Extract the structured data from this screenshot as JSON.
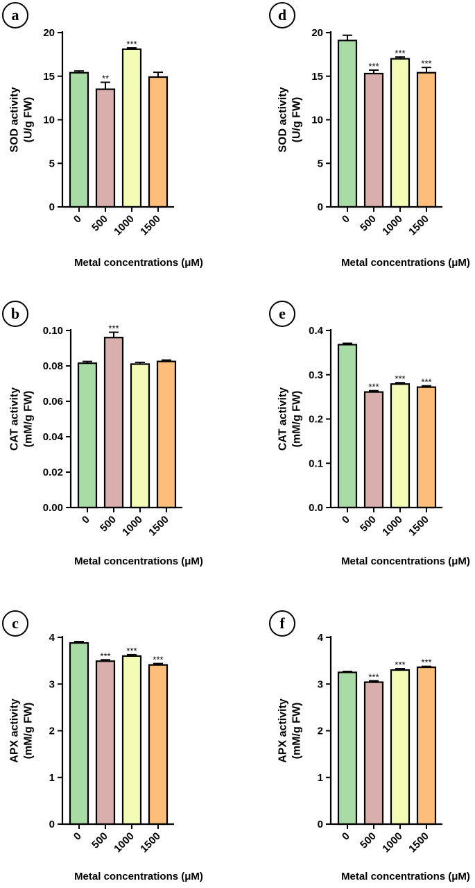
{
  "colors": {
    "0": "#a9dba6",
    "500": "#d9afad",
    "1000": "#f3fbb7",
    "1500": "#fdbd7b"
  },
  "chart_data": [
    {
      "panel": "a",
      "type": "bar",
      "categories": [
        "0",
        "500",
        "1000",
        "1500"
      ],
      "values": [
        15.4,
        13.5,
        18.1,
        14.9
      ],
      "errors": [
        0.2,
        0.8,
        0.15,
        0.55
      ],
      "significance": [
        "",
        "**",
        "***",
        ""
      ],
      "ylabel_line1": "SOD activity",
      "ylabel_line2": "(U/g FW)",
      "xlabel": "Metal concentrations (μM)",
      "ylim": [
        0,
        20
      ],
      "yticks": [
        0,
        5,
        10,
        15,
        20
      ],
      "ytick_labels": [
        "0",
        "5",
        "10",
        "15",
        "20"
      ]
    },
    {
      "panel": "b",
      "type": "bar",
      "categories": [
        "0",
        "500",
        "1000",
        "1500"
      ],
      "values": [
        0.0815,
        0.096,
        0.081,
        0.0825
      ],
      "errors": [
        0.001,
        0.003,
        0.001,
        0.0008
      ],
      "significance": [
        "",
        "***",
        "",
        ""
      ],
      "ylabel_line1": "CAT activity",
      "ylabel_line2": "(mM/g FW)",
      "xlabel": "Metal concentrations (μM)",
      "ylim": [
        0,
        0.1
      ],
      "yticks": [
        0,
        0.02,
        0.04,
        0.06,
        0.08,
        0.1
      ],
      "ytick_labels": [
        "0.00",
        "0.02",
        "0.04",
        "0.06",
        "0.08",
        "0.10"
      ]
    },
    {
      "panel": "c",
      "type": "bar",
      "categories": [
        "0",
        "500",
        "1000",
        "1500"
      ],
      "values": [
        3.88,
        3.49,
        3.6,
        3.41
      ],
      "errors": [
        0.03,
        0.03,
        0.03,
        0.03
      ],
      "significance": [
        "",
        "***",
        "***",
        "***"
      ],
      "ylabel_line1": "APX activity",
      "ylabel_line2": "(mM/g FW)",
      "xlabel": "Metal concentrations (μM)",
      "ylim": [
        0,
        4
      ],
      "yticks": [
        0,
        1,
        2,
        3,
        4
      ],
      "ytick_labels": [
        "0",
        "1",
        "2",
        "3",
        "4"
      ]
    },
    {
      "panel": "d",
      "type": "bar",
      "categories": [
        "0",
        "500",
        "1000",
        "1500"
      ],
      "values": [
        19.1,
        15.3,
        17.0,
        15.4
      ],
      "errors": [
        0.6,
        0.4,
        0.2,
        0.6
      ],
      "significance": [
        "",
        "***",
        "***",
        "***"
      ],
      "ylabel_line1": "SOD activity",
      "ylabel_line2": "(U/g FW)",
      "xlabel": "Metal concentrations (μM)",
      "ylim": [
        0,
        20
      ],
      "yticks": [
        0,
        5,
        10,
        15,
        20
      ],
      "ytick_labels": [
        "0",
        "5",
        "10",
        "15",
        "20"
      ]
    },
    {
      "panel": "e",
      "type": "bar",
      "categories": [
        "0",
        "500",
        "1000",
        "1500"
      ],
      "values": [
        0.368,
        0.261,
        0.279,
        0.272
      ],
      "errors": [
        0.003,
        0.003,
        0.003,
        0.003
      ],
      "significance": [
        "",
        "***",
        "***",
        "***"
      ],
      "ylabel_line1": "CAT activity",
      "ylabel_line2": "(mM/g FW)",
      "xlabel": "Metal concentrations (μM)",
      "ylim": [
        0,
        0.4
      ],
      "yticks": [
        0,
        0.1,
        0.2,
        0.3,
        0.4
      ],
      "ytick_labels": [
        "0.0",
        "0.1",
        "0.2",
        "0.3",
        "0.4"
      ]
    },
    {
      "panel": "f",
      "type": "bar",
      "categories": [
        "0",
        "500",
        "1000",
        "1500"
      ],
      "values": [
        3.25,
        3.04,
        3.3,
        3.36
      ],
      "errors": [
        0.02,
        0.03,
        0.03,
        0.02
      ],
      "significance": [
        "",
        "***",
        "***",
        "***"
      ],
      "ylabel_line1": "APX activity",
      "ylabel_line2": "(mM/g FW)",
      "xlabel": "Metal concentrations (μM)",
      "ylim": [
        0,
        4
      ],
      "yticks": [
        0,
        1,
        2,
        3,
        4
      ],
      "ytick_labels": [
        "0",
        "1",
        "2",
        "3",
        "4"
      ]
    }
  ]
}
